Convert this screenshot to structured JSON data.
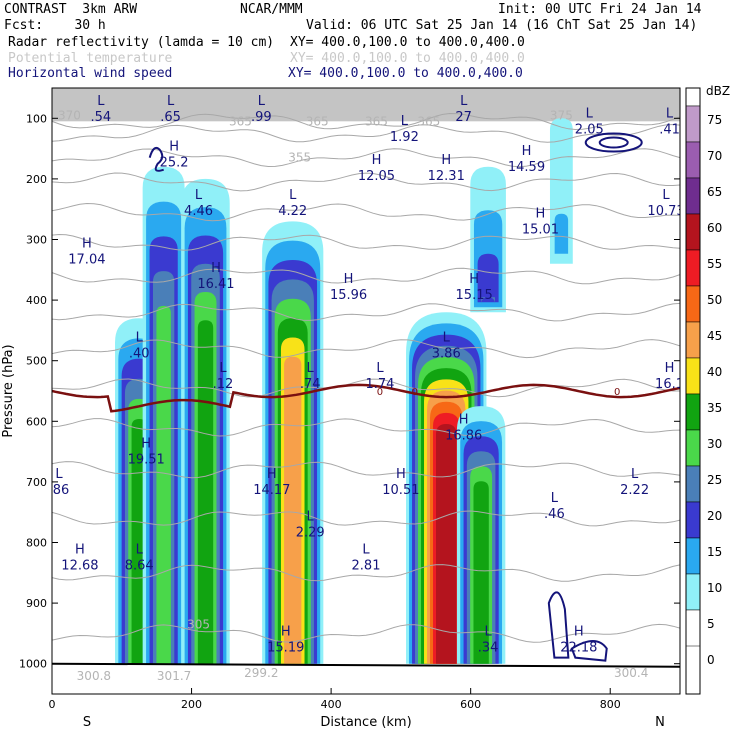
{
  "header": {
    "model": "CONTRAST  3km ARW",
    "source": "NCAR/MMM",
    "init": "Init: 00 UTC Fri 24 Jan 14",
    "fcst": "Fcst:    30 h",
    "valid": "Valid: 06 UTC Sat 25 Jan 14 (16 ChT Sat 25 Jan 14)",
    "fields": [
      {
        "name": "Radar reflectivity (lamda = 10 cm)",
        "xy": "XY= 400.0,100.0 to 400.0,400.0",
        "style": "black"
      },
      {
        "name": "Potential temperature",
        "xy": "XY= 400.0,100.0 to 400.0,400.0",
        "style": "gray"
      },
      {
        "name": "Horizontal wind speed",
        "xy": "XY= 400.0,100.0 to 400.0,400.0",
        "style": "navy"
      }
    ]
  },
  "chart_data": {
    "type": "cross-section",
    "xlabel": "Distance (km)",
    "ylabel": "Pressure (hPa)",
    "xlim": [
      0,
      900
    ],
    "ylim": [
      1050,
      50
    ],
    "xticks": [
      0,
      200,
      400,
      600,
      800
    ],
    "yticks": [
      100,
      200,
      300,
      400,
      500,
      600,
      700,
      800,
      900,
      1000
    ],
    "end_labels": {
      "left": "S",
      "right": "N"
    },
    "colorbar": {
      "unit": "dBZ",
      "levels": [
        75,
        70,
        65,
        60,
        55,
        50,
        45,
        40,
        35,
        30,
        25,
        20,
        15,
        10,
        5,
        0
      ],
      "colors": [
        "#ffffff",
        "#c09ac9",
        "#9b5db0",
        "#6f2d8f",
        "#b4141e",
        "#ee1c24",
        "#f76816",
        "#f7a04a",
        "#f8e218",
        "#11a411",
        "#4ad84a",
        "#4a7fb8",
        "#3a3ad0",
        "#2aa9f0",
        "#90f0f8",
        "#ffffff"
      ]
    },
    "reflectivity_cells": [
      {
        "x": 125,
        "top": 430,
        "max": 30
      },
      {
        "x": 160,
        "top": 180,
        "max": 25
      },
      {
        "x": 220,
        "top": 200,
        "max": 30
      },
      {
        "x": 345,
        "top": 270,
        "max": 40
      },
      {
        "x": 565,
        "top": 420,
        "max": 55
      },
      {
        "x": 615,
        "top": 575,
        "max": 30
      },
      {
        "x": 625,
        "top": 180,
        "max": 20
      },
      {
        "x": 730,
        "top": 100,
        "max": 10
      }
    ],
    "theta_labels": [
      {
        "text": "370",
        "x": 25,
        "y": 95
      },
      {
        "text": "365",
        "x": 270,
        "y": 105
      },
      {
        "text": "365",
        "x": 380,
        "y": 105
      },
      {
        "text": "365",
        "x": 465,
        "y": 105
      },
      {
        "text": "365",
        "x": 540,
        "y": 105
      },
      {
        "text": "375",
        "x": 730,
        "y": 95
      },
      {
        "text": "355",
        "x": 355,
        "y": 165
      },
      {
        "text": "300.8",
        "x": 60,
        "y": 1020
      },
      {
        "text": "301.7",
        "x": 175,
        "y": 1020
      },
      {
        "text": "299.2",
        "x": 300,
        "y": 1015
      },
      {
        "text": "300.4",
        "x": 830,
        "y": 1015
      },
      {
        "text": "305",
        "x": 210,
        "y": 935
      }
    ],
    "zero_isotherm": {
      "label": "0",
      "pressure_hPa": 550
    },
    "wind_extrema": [
      {
        "type": "L",
        "value": ".54",
        "x": 70,
        "y": 85
      },
      {
        "type": "L",
        "value": ".65",
        "x": 170,
        "y": 85
      },
      {
        "type": "L",
        "value": ".99",
        "x": 300,
        "y": 85
      },
      {
        "type": "L",
        "value": "1.92",
        "x": 505,
        "y": 118
      },
      {
        "type": "L",
        "value": "27",
        "x": 590,
        "y": 85
      },
      {
        "type": "L",
        "value": "2.05",
        "x": 770,
        "y": 105
      },
      {
        "type": "L",
        "value": ".41",
        "x": 885,
        "y": 105
      },
      {
        "type": "H",
        "value": "25.2",
        "x": 175,
        "y": 160
      },
      {
        "type": "H",
        "value": "12.05",
        "x": 465,
        "y": 182
      },
      {
        "type": "H",
        "value": "12.31",
        "x": 565,
        "y": 182
      },
      {
        "type": "H",
        "value": "14.59",
        "x": 680,
        "y": 167
      },
      {
        "type": "L",
        "value": "4.46",
        "x": 210,
        "y": 240
      },
      {
        "type": "L",
        "value": "4.22",
        "x": 345,
        "y": 240
      },
      {
        "type": "L",
        "value": "10.73",
        "x": 880,
        "y": 240
      },
      {
        "type": "H",
        "value": "15.01",
        "x": 700,
        "y": 270
      },
      {
        "type": "H",
        "value": "17.04",
        "x": 50,
        "y": 320
      },
      {
        "type": "H",
        "value": "16.41",
        "x": 235,
        "y": 360
      },
      {
        "type": "H",
        "value": "15.96",
        "x": 425,
        "y": 378
      },
      {
        "type": "H",
        "value": "15.15",
        "x": 605,
        "y": 378
      },
      {
        "type": "L",
        "value": ".40",
        "x": 125,
        "y": 475
      },
      {
        "type": "L",
        "value": "3.86",
        "x": 565,
        "y": 475
      },
      {
        "type": "L",
        "value": ".12",
        "x": 245,
        "y": 525
      },
      {
        "type": "L",
        "value": ".74",
        "x": 370,
        "y": 525
      },
      {
        "type": "L",
        "value": "1.74",
        "x": 470,
        "y": 525
      },
      {
        "type": "H",
        "value": "16.1",
        "x": 885,
        "y": 525
      },
      {
        "type": "H",
        "value": "16.86",
        "x": 590,
        "y": 610
      },
      {
        "type": "H",
        "value": "19.51",
        "x": 135,
        "y": 650
      },
      {
        "type": "L",
        "value": ".86",
        "x": 10,
        "y": 700
      },
      {
        "type": "H",
        "value": "14.17",
        "x": 315,
        "y": 700
      },
      {
        "type": "H",
        "value": "10.51",
        "x": 500,
        "y": 700
      },
      {
        "type": "L",
        "value": "2.22",
        "x": 835,
        "y": 700
      },
      {
        "type": "L",
        "value": ".46",
        "x": 720,
        "y": 740
      },
      {
        "type": "L",
        "value": "2.29",
        "x": 370,
        "y": 770
      },
      {
        "type": "H",
        "value": "12.68",
        "x": 40,
        "y": 825
      },
      {
        "type": "L",
        "value": "8.64",
        "x": 125,
        "y": 825
      },
      {
        "type": "L",
        "value": "2.81",
        "x": 450,
        "y": 825
      },
      {
        "type": "H",
        "value": "15.19",
        "x": 335,
        "y": 960
      },
      {
        "type": "L",
        "value": ".34",
        "x": 625,
        "y": 960
      },
      {
        "type": "H",
        "value": "22.18",
        "x": 755,
        "y": 960
      }
    ]
  }
}
